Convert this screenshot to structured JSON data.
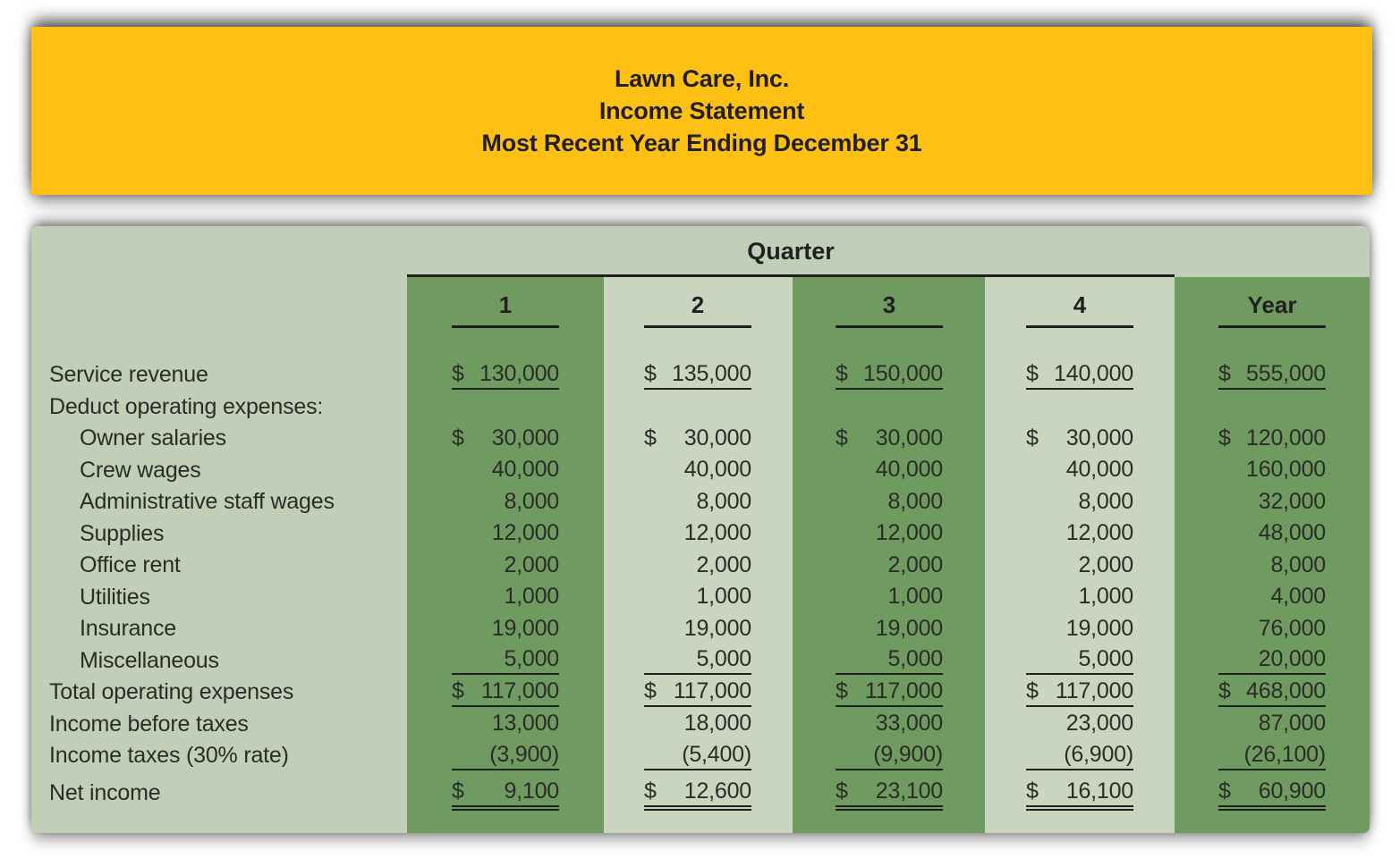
{
  "banner": {
    "lines": [
      "Lawn Care, Inc.",
      "Income Statement",
      "Most Recent Year Ending December 31"
    ]
  },
  "table": {
    "group_header": "Quarter",
    "column_headers": [
      "1",
      "2",
      "3",
      "4",
      "Year"
    ],
    "rows": [
      {
        "label": "Service revenue",
        "indent": 0,
        "underline": "single",
        "gap_above": false,
        "values": [
          "$130,000",
          "$135,000",
          "$150,000",
          "$140,000",
          "$555,000"
        ]
      },
      {
        "label": "Deduct operating expenses:",
        "indent": 0,
        "underline": "none",
        "gap_above": false,
        "values": [
          "",
          "",
          "",
          "",
          ""
        ]
      },
      {
        "label": "Owner salaries",
        "indent": 1,
        "underline": "none",
        "gap_above": false,
        "values": [
          "$ 30,000",
          "$ 30,000",
          "$ 30,000",
          "$ 30,000",
          "$120,000"
        ]
      },
      {
        "label": "Crew wages",
        "indent": 1,
        "underline": "none",
        "gap_above": false,
        "values": [
          "40,000",
          "40,000",
          "40,000",
          "40,000",
          "160,000"
        ]
      },
      {
        "label": "Administrative staff wages",
        "indent": 1,
        "underline": "none",
        "gap_above": false,
        "values": [
          "8,000",
          "8,000",
          "8,000",
          "8,000",
          "32,000"
        ]
      },
      {
        "label": "Supplies",
        "indent": 1,
        "underline": "none",
        "gap_above": false,
        "values": [
          "12,000",
          "12,000",
          "12,000",
          "12,000",
          "48,000"
        ]
      },
      {
        "label": "Office rent",
        "indent": 1,
        "underline": "none",
        "gap_above": false,
        "values": [
          "2,000",
          "2,000",
          "2,000",
          "2,000",
          "8,000"
        ]
      },
      {
        "label": "Utilities",
        "indent": 1,
        "underline": "none",
        "gap_above": false,
        "values": [
          "1,000",
          "1,000",
          "1,000",
          "1,000",
          "4,000"
        ]
      },
      {
        "label": "Insurance",
        "indent": 1,
        "underline": "none",
        "gap_above": false,
        "values": [
          "19,000",
          "19,000",
          "19,000",
          "19,000",
          "76,000"
        ]
      },
      {
        "label": "Miscellaneous",
        "indent": 1,
        "underline": "single",
        "gap_above": false,
        "values": [
          "5,000",
          "5,000",
          "5,000",
          "5,000",
          "20,000"
        ]
      },
      {
        "label": "Total operating expenses",
        "indent": 0,
        "underline": "single",
        "gap_above": false,
        "values": [
          "$117,000",
          "$117,000",
          "$117,000",
          "$117,000",
          "$468,000"
        ]
      },
      {
        "label": "Income before taxes",
        "indent": 0,
        "underline": "none",
        "gap_above": false,
        "values": [
          "13,000",
          "18,000",
          "33,000",
          "23,000",
          "87,000"
        ]
      },
      {
        "label": "Income taxes (30% rate)",
        "indent": 0,
        "underline": "single",
        "gap_above": false,
        "values": [
          "(3,900)",
          "(5,400)",
          "(9,900)",
          "(6,900)",
          "(26,100)"
        ]
      },
      {
        "label": "Net income",
        "indent": 0,
        "underline": "double",
        "gap_above": true,
        "values": [
          "$ 9,100",
          "$ 12,600",
          "$ 23,100",
          "$ 16,100",
          "$ 60,900"
        ]
      }
    ]
  },
  "colors": {
    "banner_bg": "#FDC013",
    "sheet_bg": "#C2CFB8",
    "stripe_dark": "#6F9B61",
    "stripe_light": "#C9D5BF",
    "rule": "#1F1F1F",
    "text": "#2B2B28"
  }
}
